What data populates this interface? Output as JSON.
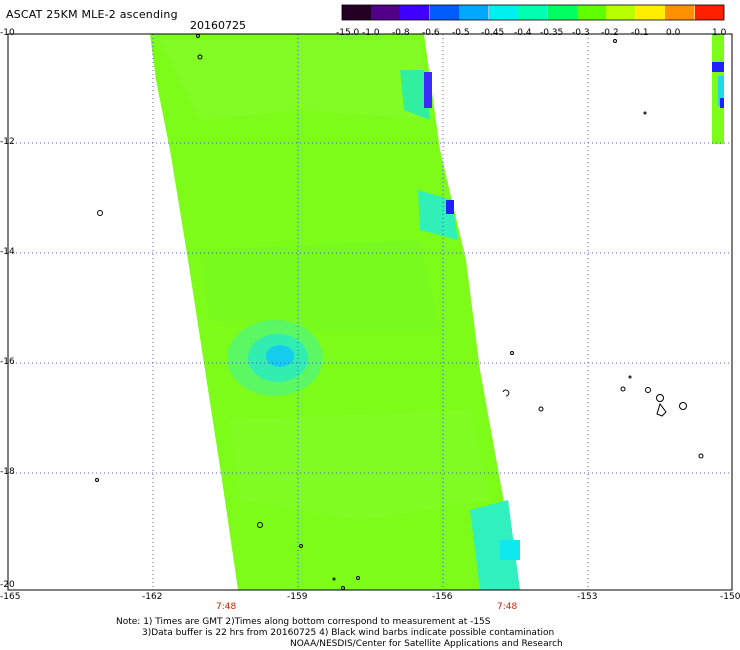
{
  "title": "ASCAT 25KM MLE-2 ascending",
  "date": "20160725",
  "colorbar": {
    "ticks": [
      "-15.0",
      "-1.0",
      "-0.8",
      "-0.6",
      "-0.5",
      "-0.45",
      "-0.4",
      "-0.35",
      "-0.3",
      "-0.2",
      "-0.1",
      "0.0",
      "1.0"
    ],
    "colors": [
      "#240024",
      "#52008a",
      "#4000ff",
      "#005cff",
      "#00a8ff",
      "#00f0f0",
      "#00ffb0",
      "#00ff60",
      "#60ff00",
      "#b8ff00",
      "#ffee00",
      "#ff9000",
      "#ff2000"
    ]
  },
  "axes": {
    "lat_labels": [
      "-10",
      "-12",
      "-14",
      "-16",
      "-18",
      "-20"
    ],
    "lon_labels": [
      "-165",
      "-162",
      "-159",
      "-156",
      "-153",
      "-150"
    ],
    "lat_range": [
      -20,
      -10
    ],
    "lon_range": [
      -165,
      -150
    ]
  },
  "times": [
    "7:48",
    "7:48"
  ],
  "time_color": "#cc2200",
  "notes": [
    "Note: 1) Times are GMT 2)Times along bottom correspond to measurement at -15S",
    "3)Data buffer is 22 hrs from 20160725 4) Black wind barbs indicate possible contamination",
    "NOAA/NESDIS/Center for Satellite Applications and Research"
  ]
}
